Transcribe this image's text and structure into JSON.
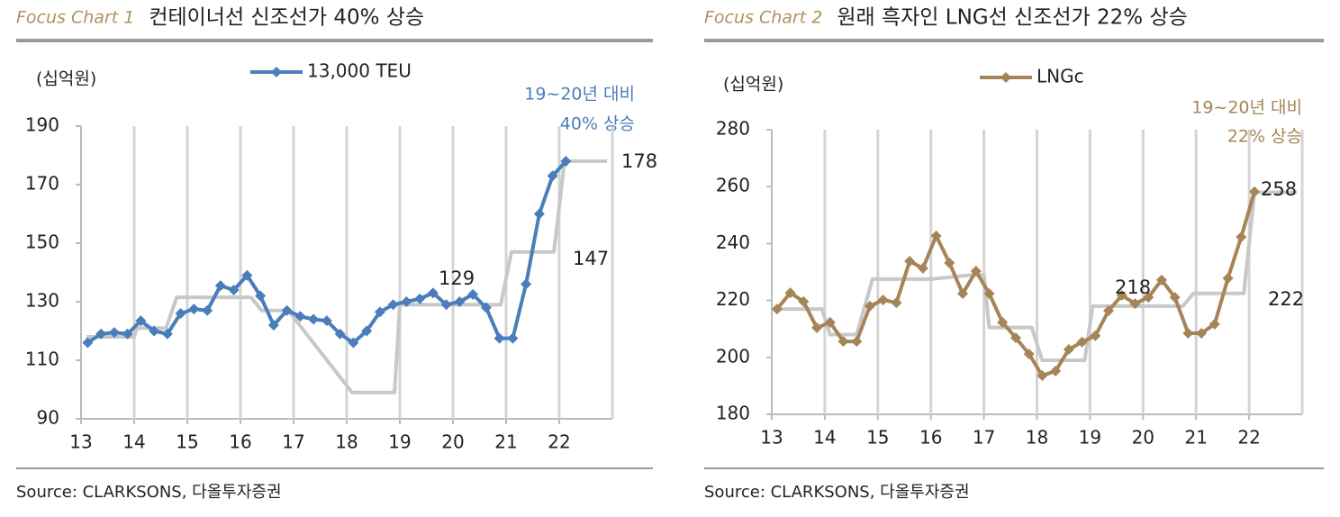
{
  "chart_data": [
    {
      "type": "line",
      "label": "Focus Chart 1",
      "title": "컨테이너선 신조선가 40% 상승",
      "unit": "(십억원)",
      "annotation": [
        "19~20년 대비",
        "40% 상승"
      ],
      "source": "Source: CLARKSONS, 다올투자증권",
      "xlim": [
        13,
        23
      ],
      "xticks": [
        13,
        14,
        15,
        16,
        17,
        18,
        19,
        20,
        21,
        22
      ],
      "ylim": [
        90,
        190
      ],
      "yticks": [
        90,
        110,
        130,
        150,
        170,
        190
      ],
      "series": [
        {
          "name": "13,000 TEU",
          "color": "#4a7ebb",
          "marker": "diamond",
          "x": [
            13.125,
            13.375,
            13.625,
            13.875,
            14.125,
            14.375,
            14.625,
            14.875,
            15.125,
            15.375,
            15.625,
            15.875,
            16.125,
            16.375,
            16.625,
            16.875,
            17.125,
            17.375,
            17.625,
            17.875,
            18.125,
            18.375,
            18.625,
            18.875,
            19.125,
            19.375,
            19.625,
            19.875,
            20.125,
            20.375,
            20.625,
            20.875,
            21.125,
            21.375,
            21.625,
            21.875,
            22.125
          ],
          "values": [
            116,
            119,
            119.5,
            119,
            123.5,
            120,
            119,
            126,
            127.5,
            127,
            135.5,
            134,
            139,
            132,
            122,
            127,
            125,
            124,
            123.5,
            119,
            116,
            120,
            126.5,
            129,
            130,
            131,
            133,
            129,
            130,
            132.5,
            128,
            117.5,
            117.5,
            136,
            160,
            173,
            178
          ]
        },
        {
          "color": "#c8c8c8",
          "x": [
            13.1,
            14,
            14.05,
            14.6,
            14.8,
            16.2,
            16.4,
            16.9,
            18.1,
            18.9,
            19,
            20.9,
            21.1,
            21.9,
            22.1,
            22.9
          ],
          "values": [
            118,
            118,
            121,
            121,
            131.5,
            131.5,
            127,
            127,
            99,
            99,
            129,
            129,
            147,
            147,
            178,
            178
          ]
        }
      ],
      "level_labels": [
        129,
        147,
        178
      ]
    },
    {
      "type": "line",
      "label": "Focus Chart 2",
      "title": "원래 흑자인 LNG선 신조선가 22% 상승",
      "unit": "(십억원)",
      "annotation": [
        "19~20년 대비",
        "22% 상승"
      ],
      "source": "Source: CLARKSONS, 다올투자증권",
      "xlim": [
        13,
        23
      ],
      "xticks": [
        13,
        14,
        15,
        16,
        17,
        18,
        19,
        20,
        21,
        22
      ],
      "ylim": [
        180,
        280
      ],
      "yticks": [
        180,
        200,
        220,
        240,
        260,
        280
      ],
      "series": [
        {
          "name": "LNGc",
          "color": "#a58558",
          "marker": "diamond",
          "x": [
            13.1,
            13.35,
            13.6,
            13.85,
            14.1,
            14.35,
            14.6,
            14.85,
            15.1,
            15.35,
            15.6,
            15.85,
            16.1,
            16.35,
            16.6,
            16.85,
            17.1,
            17.35,
            17.6,
            17.85,
            18.1,
            18.35,
            18.6,
            18.85,
            19.1,
            19.35,
            19.6,
            19.85,
            20.1,
            20.35,
            20.6,
            20.85,
            21.1,
            21.35,
            21.6,
            21.85,
            22.1
          ],
          "values": [
            217,
            222.7,
            219.6,
            210.4,
            212.3,
            205.6,
            205.6,
            218,
            220.2,
            219.2,
            233.8,
            231.3,
            242.7,
            233.2,
            222.4,
            230.3,
            222.4,
            212.3,
            206.9,
            201.2,
            193.6,
            195.2,
            202.8,
            205.4,
            207.6,
            216.4,
            221.8,
            218.9,
            221.1,
            227.2,
            221.1,
            208.5,
            208.5,
            211.7,
            227.8,
            242.3,
            258.2
          ]
        },
        {
          "color": "#c8c8c8",
          "x": [
            13,
            13.95,
            14.1,
            14.6,
            14.9,
            16,
            16.8,
            17,
            17.1,
            17.9,
            18.1,
            18.9,
            19.05,
            20.75,
            20.95,
            21.9,
            22.1,
            22.9
          ],
          "values": [
            217,
            217,
            208,
            208,
            227.5,
            227.5,
            229,
            229,
            210.5,
            210.5,
            199,
            199,
            218,
            218,
            222.5,
            222.5,
            258,
            258
          ]
        }
      ],
      "level_labels": [
        218,
        222,
        258
      ]
    }
  ]
}
